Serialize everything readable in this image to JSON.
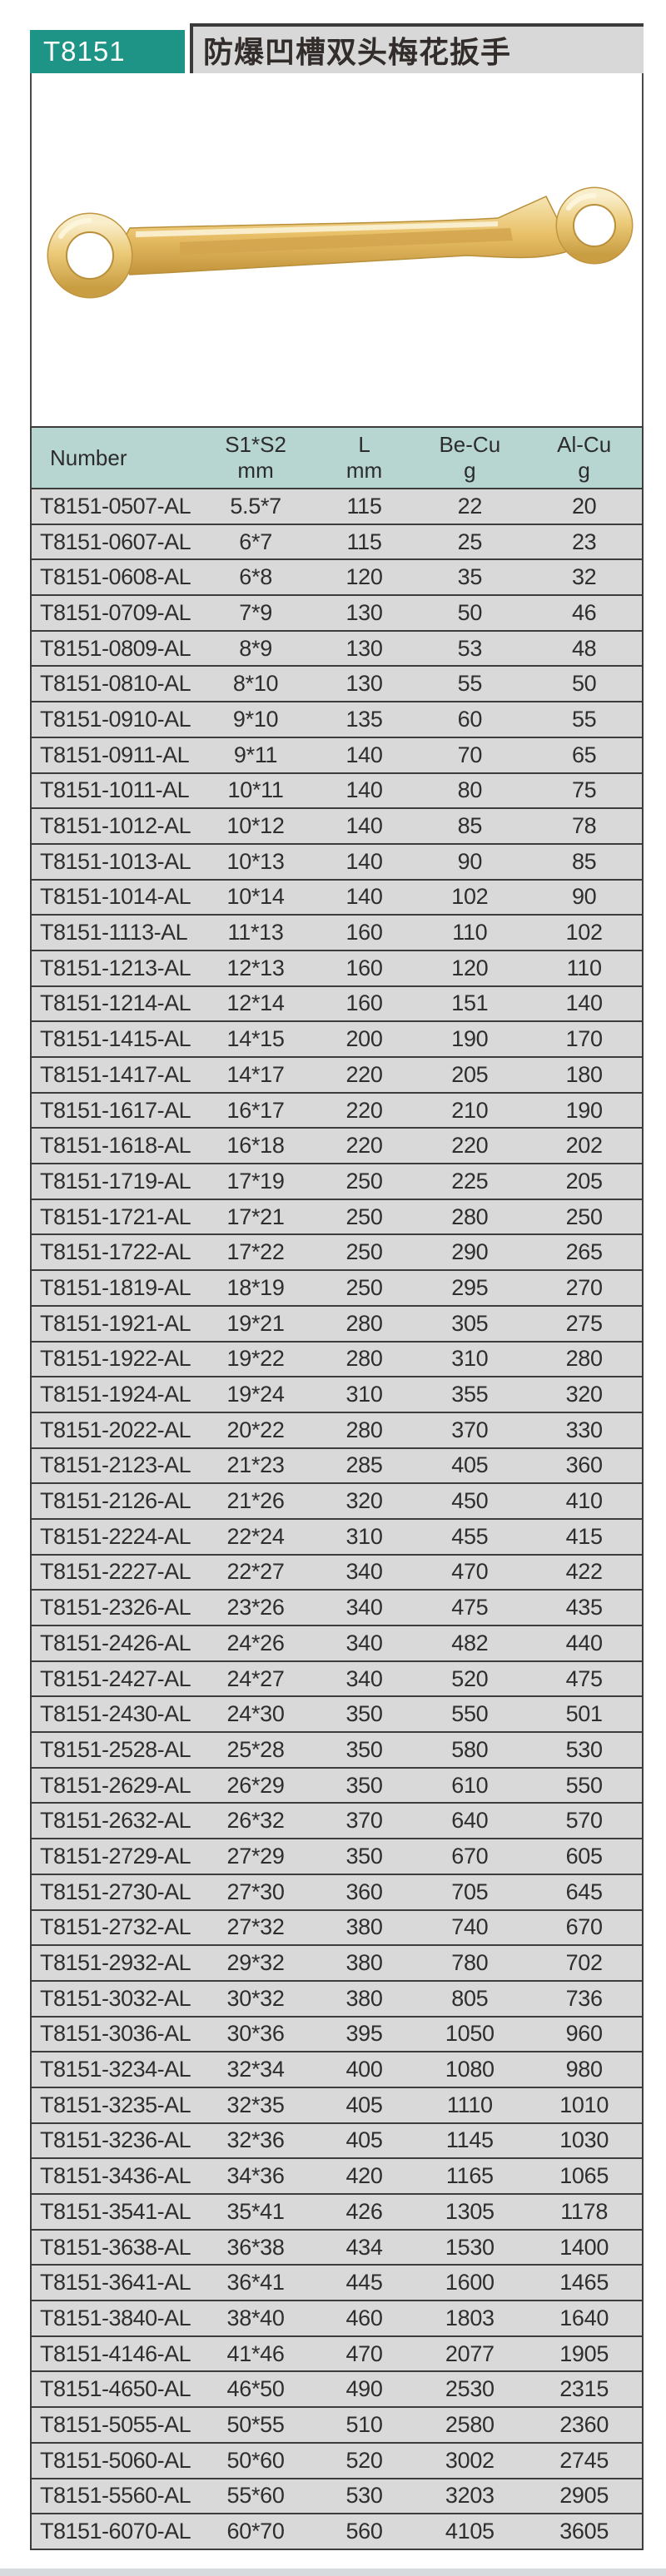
{
  "page": {
    "model": "T8151",
    "title": "防爆凹槽双头梅花扳手",
    "colors": {
      "accent_teal": "#1d9485",
      "title_bg": "#d8d8d8",
      "title_text": "#322d2b",
      "table_header_bg": "#b7d5d1",
      "row_bg": "#d9d9d9",
      "border": "#3c3c3c",
      "wrench_gold_light": "#f7e8bd",
      "wrench_gold_mid": "#e9c06a",
      "wrench_gold_dark": "#c79a3f"
    }
  },
  "product_image": {
    "icon": "wrench-icon",
    "description": "gold double box-end offset wrench"
  },
  "table": {
    "columns": [
      {
        "label": "Number",
        "unit": ""
      },
      {
        "label": "S1*S2",
        "unit": "mm"
      },
      {
        "label": "L",
        "unit": "mm"
      },
      {
        "label": "Be-Cu",
        "unit": "g"
      },
      {
        "label": "Al-Cu",
        "unit": "g"
      }
    ],
    "rows": [
      [
        "T8151-0507-AL",
        "5.5*7",
        "115",
        "22",
        "20"
      ],
      [
        "T8151-0607-AL",
        "6*7",
        "115",
        "25",
        "23"
      ],
      [
        "T8151-0608-AL",
        "6*8",
        "120",
        "35",
        "32"
      ],
      [
        "T8151-0709-AL",
        "7*9",
        "130",
        "50",
        "46"
      ],
      [
        "T8151-0809-AL",
        "8*9",
        "130",
        "53",
        "48"
      ],
      [
        "T8151-0810-AL",
        "8*10",
        "130",
        "55",
        "50"
      ],
      [
        "T8151-0910-AL",
        "9*10",
        "135",
        "60",
        "55"
      ],
      [
        "T8151-0911-AL",
        "9*11",
        "140",
        "70",
        "65"
      ],
      [
        "T8151-1011-AL",
        "10*11",
        "140",
        "80",
        "75"
      ],
      [
        "T8151-1012-AL",
        "10*12",
        "140",
        "85",
        "78"
      ],
      [
        "T8151-1013-AL",
        "10*13",
        "140",
        "90",
        "85"
      ],
      [
        "T8151-1014-AL",
        "10*14",
        "140",
        "102",
        "90"
      ],
      [
        "T8151-1113-AL",
        "11*13",
        "160",
        "110",
        "102"
      ],
      [
        "T8151-1213-AL",
        "12*13",
        "160",
        "120",
        "110"
      ],
      [
        "T8151-1214-AL",
        "12*14",
        "160",
        "151",
        "140"
      ],
      [
        "T8151-1415-AL",
        "14*15",
        "200",
        "190",
        "170"
      ],
      [
        "T8151-1417-AL",
        "14*17",
        "220",
        "205",
        "180"
      ],
      [
        "T8151-1617-AL",
        "16*17",
        "220",
        "210",
        "190"
      ],
      [
        "T8151-1618-AL",
        "16*18",
        "220",
        "220",
        "202"
      ],
      [
        "T8151-1719-AL",
        "17*19",
        "250",
        "225",
        "205"
      ],
      [
        "T8151-1721-AL",
        "17*21",
        "250",
        "280",
        "250"
      ],
      [
        "T8151-1722-AL",
        "17*22",
        "250",
        "290",
        "265"
      ],
      [
        "T8151-1819-AL",
        "18*19",
        "250",
        "295",
        "270"
      ],
      [
        "T8151-1921-AL",
        "19*21",
        "280",
        "305",
        "275"
      ],
      [
        "T8151-1922-AL",
        "19*22",
        "280",
        "310",
        "280"
      ],
      [
        "T8151-1924-AL",
        "19*24",
        "310",
        "355",
        "320"
      ],
      [
        "T8151-2022-AL",
        "20*22",
        "280",
        "370",
        "330"
      ],
      [
        "T8151-2123-AL",
        "21*23",
        "285",
        "405",
        "360"
      ],
      [
        "T8151-2126-AL",
        "21*26",
        "320",
        "450",
        "410"
      ],
      [
        "T8151-2224-AL",
        "22*24",
        "310",
        "455",
        "415"
      ],
      [
        "T8151-2227-AL",
        "22*27",
        "340",
        "470",
        "422"
      ],
      [
        "T8151-2326-AL",
        "23*26",
        "340",
        "475",
        "435"
      ],
      [
        "T8151-2426-AL",
        "24*26",
        "340",
        "482",
        "440"
      ],
      [
        "T8151-2427-AL",
        "24*27",
        "340",
        "520",
        "475"
      ],
      [
        "T8151-2430-AL",
        "24*30",
        "350",
        "550",
        "501"
      ],
      [
        "T8151-2528-AL",
        "25*28",
        "350",
        "580",
        "530"
      ],
      [
        "T8151-2629-AL",
        "26*29",
        "350",
        "610",
        "550"
      ],
      [
        "T8151-2632-AL",
        "26*32",
        "370",
        "640",
        "570"
      ],
      [
        "T8151-2729-AL",
        "27*29",
        "350",
        "670",
        "605"
      ],
      [
        "T8151-2730-AL",
        "27*30",
        "360",
        "705",
        "645"
      ],
      [
        "T8151-2732-AL",
        "27*32",
        "380",
        "740",
        "670"
      ],
      [
        "T8151-2932-AL",
        "29*32",
        "380",
        "780",
        "702"
      ],
      [
        "T8151-3032-AL",
        "30*32",
        "380",
        "805",
        "736"
      ],
      [
        "T8151-3036-AL",
        "30*36",
        "395",
        "1050",
        "960"
      ],
      [
        "T8151-3234-AL",
        "32*34",
        "400",
        "1080",
        "980"
      ],
      [
        "T8151-3235-AL",
        "32*35",
        "405",
        "1110",
        "1010"
      ],
      [
        "T8151-3236-AL",
        "32*36",
        "405",
        "1145",
        "1030"
      ],
      [
        "T8151-3436-AL",
        "34*36",
        "420",
        "1165",
        "1065"
      ],
      [
        "T8151-3541-AL",
        "35*41",
        "426",
        "1305",
        "1178"
      ],
      [
        "T8151-3638-AL",
        "36*38",
        "434",
        "1530",
        "1400"
      ],
      [
        "T8151-3641-AL",
        "36*41",
        "445",
        "1600",
        "1465"
      ],
      [
        "T8151-3840-AL",
        "38*40",
        "460",
        "1803",
        "1640"
      ],
      [
        "T8151-4146-AL",
        "41*46",
        "470",
        "2077",
        "1905"
      ],
      [
        "T8151-4650-AL",
        "46*50",
        "490",
        "2530",
        "2315"
      ],
      [
        "T8151-5055-AL",
        "50*55",
        "510",
        "2580",
        "2360"
      ],
      [
        "T8151-5060-AL",
        "50*60",
        "520",
        "3002",
        "2745"
      ],
      [
        "T8151-5560-AL",
        "55*60",
        "530",
        "3203",
        "2905"
      ],
      [
        "T8151-6070-AL",
        "60*70",
        "560",
        "4105",
        "3605"
      ]
    ]
  }
}
